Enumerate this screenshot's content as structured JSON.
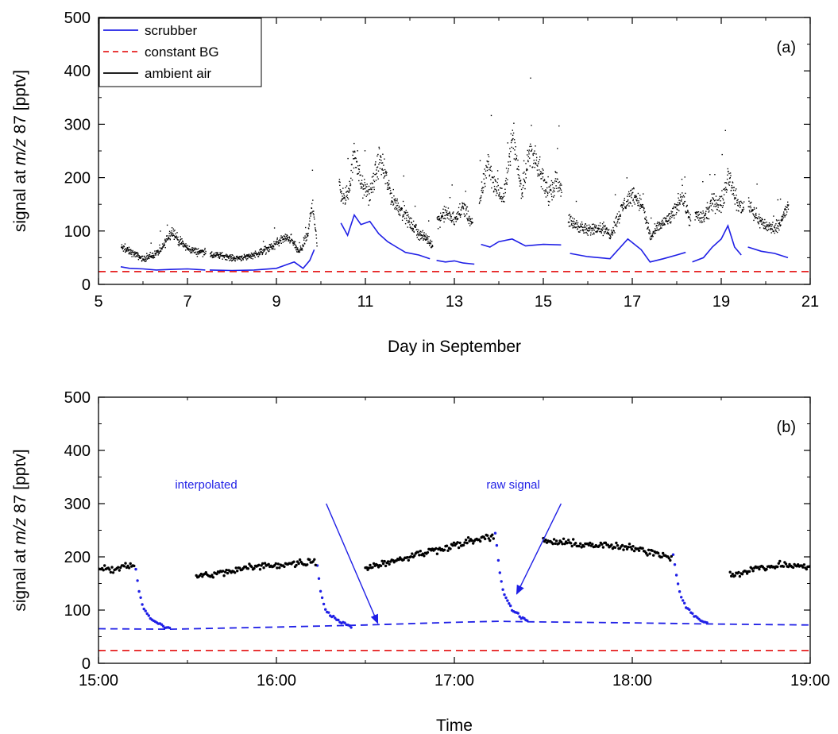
{
  "chart_data": [
    {
      "type": "scatter",
      "panel_label": "(a)",
      "xlabel": "Day in September",
      "ylabel_parts": [
        "signal at ",
        "m/z",
        " 87 [pptv]"
      ],
      "xlim": [
        5,
        21
      ],
      "ylim": [
        0,
        500
      ],
      "xticks": [
        5,
        7,
        9,
        11,
        13,
        15,
        17,
        19,
        21
      ],
      "yticks": [
        0,
        100,
        200,
        300,
        400,
        500
      ],
      "legend_position": "top-left",
      "colors": {
        "scrubber": "#1f1fe6",
        "constant_bg": "#e62020",
        "ambient": "#000000"
      },
      "series": [
        {
          "name": "scrubber",
          "style": "line",
          "segments": [
            [
              [
                5.5,
                33
              ],
              [
                5.7,
                30
              ],
              [
                6.0,
                29
              ],
              [
                6.3,
                27
              ],
              [
                6.6,
                28
              ],
              [
                7.0,
                29
              ],
              [
                7.4,
                27
              ]
            ],
            [
              [
                7.5,
                27
              ],
              [
                8.0,
                26
              ],
              [
                8.5,
                27
              ],
              [
                9.0,
                30
              ],
              [
                9.2,
                36
              ],
              [
                9.4,
                42
              ],
              [
                9.6,
                30
              ],
              [
                9.75,
                45
              ],
              [
                9.85,
                65
              ]
            ],
            [
              [
                10.45,
                115
              ],
              [
                10.6,
                92
              ],
              [
                10.75,
                130
              ],
              [
                10.9,
                112
              ],
              [
                11.1,
                118
              ],
              [
                11.3,
                95
              ],
              [
                11.5,
                80
              ],
              [
                11.7,
                70
              ],
              [
                11.9,
                60
              ],
              [
                12.2,
                55
              ],
              [
                12.45,
                48
              ]
            ],
            [
              [
                12.6,
                45
              ],
              [
                12.8,
                42
              ],
              [
                13.0,
                44
              ],
              [
                13.2,
                40
              ],
              [
                13.45,
                38
              ]
            ],
            [
              [
                13.6,
                75
              ],
              [
                13.8,
                70
              ],
              [
                14.0,
                80
              ],
              [
                14.3,
                85
              ],
              [
                14.6,
                72
              ],
              [
                15.0,
                75
              ],
              [
                15.4,
                74
              ]
            ],
            [
              [
                15.6,
                58
              ],
              [
                16.0,
                52
              ],
              [
                16.5,
                48
              ],
              [
                16.9,
                85
              ],
              [
                17.2,
                65
              ],
              [
                17.4,
                42
              ],
              [
                17.7,
                48
              ],
              [
                18.0,
                55
              ],
              [
                18.2,
                60
              ]
            ],
            [
              [
                18.35,
                42
              ],
              [
                18.6,
                50
              ],
              [
                18.8,
                70
              ],
              [
                19.0,
                85
              ],
              [
                19.15,
                110
              ],
              [
                19.3,
                70
              ],
              [
                19.45,
                55
              ]
            ],
            [
              [
                19.6,
                70
              ],
              [
                19.9,
                62
              ],
              [
                20.2,
                58
              ],
              [
                20.5,
                50
              ]
            ]
          ]
        },
        {
          "name": "constant BG",
          "style": "dashed",
          "points": [
            [
              5,
              24
            ],
            [
              21,
              24
            ]
          ]
        },
        {
          "name": "ambient air",
          "style": "dots",
          "segments": [
            [
              [
                5.5,
                70
              ],
              [
                5.8,
                58
              ],
              [
                6.0,
                48
              ],
              [
                6.2,
                55
              ],
              [
                6.4,
                65
              ],
              [
                6.55,
                90
              ],
              [
                6.65,
                102
              ],
              [
                6.8,
                82
              ],
              [
                7.0,
                68
              ],
              [
                7.2,
                62
              ],
              [
                7.4,
                62
              ]
            ],
            [
              [
                7.5,
                55
              ],
              [
                7.8,
                55
              ],
              [
                8.0,
                50
              ],
              [
                8.3,
                52
              ],
              [
                8.6,
                60
              ],
              [
                8.9,
                72
              ],
              [
                9.1,
                85
              ],
              [
                9.3,
                88
              ],
              [
                9.5,
                60
              ],
              [
                9.7,
                95
              ],
              [
                9.8,
                160
              ],
              [
                9.9,
                72
              ]
            ],
            [
              [
                10.4,
                190
              ],
              [
                10.5,
                160
              ],
              [
                10.6,
                170
              ],
              [
                10.75,
                250
              ],
              [
                10.9,
                185
              ],
              [
                11.1,
                170
              ],
              [
                11.3,
                235
              ],
              [
                11.45,
                200
              ],
              [
                11.6,
                160
              ],
              [
                11.8,
                140
              ],
              [
                12.0,
                115
              ],
              [
                12.2,
                95
              ],
              [
                12.4,
                85
              ],
              [
                12.5,
                75
              ]
            ],
            [
              [
                12.6,
                120
              ],
              [
                12.8,
                135
              ],
              [
                13.0,
                120
              ],
              [
                13.2,
                150
              ],
              [
                13.4,
                110
              ]
            ],
            [
              [
                13.55,
                155
              ],
              [
                13.75,
                230
              ],
              [
                13.9,
                185
              ],
              [
                14.1,
                160
              ],
              [
                14.3,
                285
              ],
              [
                14.5,
                175
              ],
              [
                14.7,
                255
              ],
              [
                14.9,
                210
              ],
              [
                15.1,
                170
              ],
              [
                15.3,
                195
              ],
              [
                15.4,
                185
              ]
            ],
            [
              [
                15.55,
                120
              ],
              [
                15.8,
                110
              ],
              [
                16.0,
                100
              ],
              [
                16.2,
                110
              ],
              [
                16.5,
                95
              ],
              [
                16.8,
                150
              ],
              [
                17.0,
                170
              ],
              [
                17.2,
                150
              ],
              [
                17.4,
                90
              ],
              [
                17.6,
                110
              ],
              [
                17.9,
                130
              ],
              [
                18.1,
                170
              ],
              [
                18.3,
                120
              ]
            ],
            [
              [
                18.4,
                130
              ],
              [
                18.6,
                125
              ],
              [
                18.8,
                155
              ],
              [
                19.0,
                150
              ],
              [
                19.15,
                210
              ],
              [
                19.35,
                150
              ],
              [
                19.5,
                145
              ]
            ],
            [
              [
                19.6,
                155
              ],
              [
                19.8,
                125
              ],
              [
                20.0,
                110
              ],
              [
                20.2,
                105
              ],
              [
                20.4,
                130
              ],
              [
                20.5,
                150
              ]
            ]
          ]
        }
      ]
    },
    {
      "type": "scatter",
      "panel_label": "(b)",
      "xlabel": "Time",
      "ylabel_parts": [
        "signal at ",
        "m/z",
        " 87 [pptv]"
      ],
      "xlim": [
        15,
        19
      ],
      "ylim": [
        0,
        500
      ],
      "xticks": [
        15,
        16,
        17,
        18,
        19
      ],
      "xticklabels": [
        "15:00",
        "16:00",
        "17:00",
        "18:00",
        "19:00"
      ],
      "yticks": [
        0,
        100,
        200,
        300,
        400,
        500
      ],
      "colors": {
        "interpolated": "#1f1fe6",
        "raw_signal": "#1f1fe6",
        "constant_bg": "#e62020",
        "ambient": "#000000"
      },
      "annotations": [
        {
          "text": "interpolated",
          "text_at": [
            15.43,
            328
          ],
          "arrow_from": [
            16.28,
            300
          ],
          "arrow_to": [
            16.57,
            75
          ]
        },
        {
          "text": "raw signal",
          "text_at": [
            17.18,
            328
          ],
          "arrow_from": [
            17.6,
            300
          ],
          "arrow_to": [
            17.35,
            130
          ]
        }
      ],
      "series": [
        {
          "name": "interpolated",
          "style": "dashed",
          "points": [
            [
              15.0,
              65
            ],
            [
              15.4,
              64
            ],
            [
              16.0,
              68
            ],
            [
              16.5,
              72
            ],
            [
              17.0,
              77
            ],
            [
              17.25,
              79
            ],
            [
              17.4,
              78
            ],
            [
              18.0,
              76
            ],
            [
              18.4,
              74
            ],
            [
              19.0,
              72
            ]
          ]
        },
        {
          "name": "constant BG",
          "style": "dashed",
          "points": [
            [
              15,
              24
            ],
            [
              19,
              24
            ]
          ]
        },
        {
          "name": "raw signal",
          "style": "dots",
          "segments": [
            [
              [
                15.21,
                175
              ],
              [
                15.23,
                130
              ],
              [
                15.25,
                105
              ],
              [
                15.28,
                90
              ],
              [
                15.31,
                80
              ],
              [
                15.35,
                72
              ],
              [
                15.4,
                65
              ]
            ],
            [
              [
                16.23,
                185
              ],
              [
                16.25,
                130
              ],
              [
                16.27,
                105
              ],
              [
                16.3,
                92
              ],
              [
                16.34,
                82
              ],
              [
                16.38,
                75
              ],
              [
                16.42,
                70
              ]
            ],
            [
              [
                17.23,
                245
              ],
              [
                17.25,
                185
              ],
              [
                17.27,
                140
              ],
              [
                17.3,
                115
              ],
              [
                17.33,
                98
              ],
              [
                17.37,
                88
              ],
              [
                17.41,
                80
              ]
            ],
            [
              [
                18.23,
                205
              ],
              [
                18.25,
                160
              ],
              [
                18.27,
                128
              ],
              [
                18.3,
                108
              ],
              [
                18.34,
                92
              ],
              [
                18.38,
                82
              ],
              [
                18.42,
                76
              ]
            ]
          ]
        },
        {
          "name": "ambient air",
          "style": "dots",
          "segments": [
            [
              [
                15.0,
                180
              ],
              [
                15.05,
                178
              ],
              [
                15.1,
                176
              ],
              [
                15.15,
                182
              ],
              [
                15.2,
                185
              ]
            ],
            [
              [
                15.55,
                163
              ],
              [
                15.7,
                170
              ],
              [
                15.85,
                180
              ],
              [
                16.0,
                185
              ],
              [
                16.12,
                188
              ],
              [
                16.22,
                192
              ]
            ],
            [
              [
                16.5,
                180
              ],
              [
                16.65,
                192
              ],
              [
                16.8,
                205
              ],
              [
                16.95,
                218
              ],
              [
                17.1,
                230
              ],
              [
                17.22,
                238
              ]
            ],
            [
              [
                17.5,
                230
              ],
              [
                17.65,
                225
              ],
              [
                17.8,
                222
              ],
              [
                17.95,
                218
              ],
              [
                18.1,
                210
              ],
              [
                18.22,
                200
              ]
            ],
            [
              [
                18.55,
                165
              ],
              [
                18.65,
                175
              ],
              [
                18.75,
                180
              ],
              [
                18.85,
                185
              ],
              [
                18.95,
                182
              ],
              [
                19.0,
                180
              ]
            ]
          ]
        }
      ]
    }
  ]
}
